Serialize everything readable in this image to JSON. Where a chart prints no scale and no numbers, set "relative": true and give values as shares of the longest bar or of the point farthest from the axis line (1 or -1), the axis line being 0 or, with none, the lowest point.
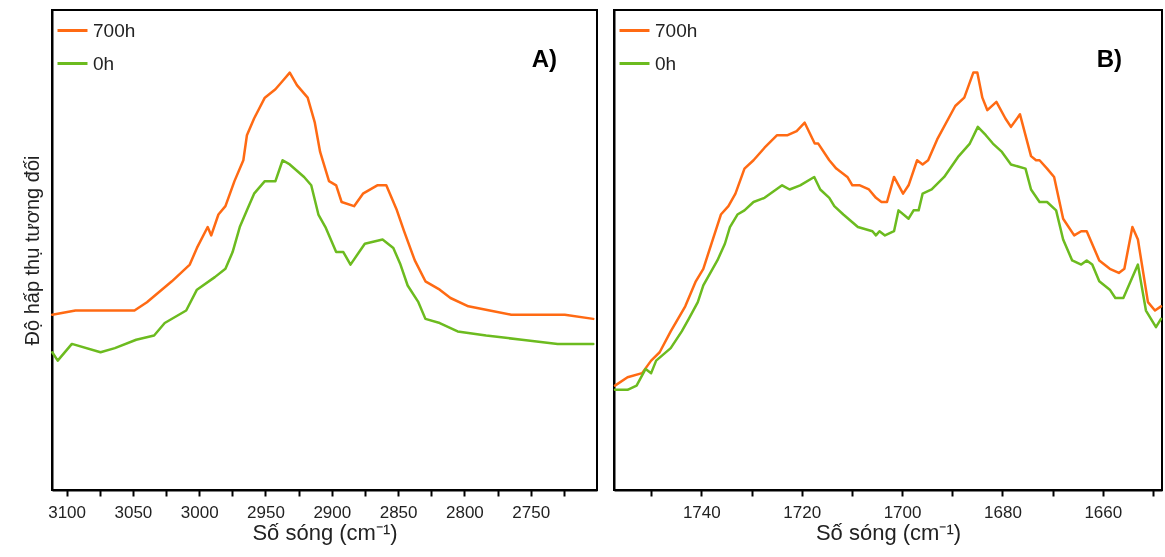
{
  "chart_data": [
    {
      "type": "line",
      "relative": true,
      "ylabel": "Độ hấp thụ tương đối",
      "xlabel": "Số sóng (cm⁻¹)",
      "annotations": [
        "A)"
      ],
      "legend": "top left",
      "xlim": [
        3111,
        2700
      ],
      "xticks": [
        3100,
        {
          "value": 3075,
          "label": null
        },
        3050,
        {
          "value": 3025,
          "label": null
        },
        3000,
        {
          "value": 2975,
          "label": null
        },
        2950,
        {
          "value": 2925,
          "label": null
        },
        2900,
        {
          "value": 2875,
          "label": null
        },
        2850,
        {
          "value": 2825,
          "label": null
        },
        2800,
        {
          "value": 2775,
          "label": null
        },
        2750,
        {
          "value": 2725,
          "label": null
        }
      ],
      "series": [
        {
          "name": "700h",
          "color": "#ff6a13",
          "x": [
            3110.8,
            3093.3,
            3066.3,
            3048.8,
            3039.4,
            3020.6,
            3007.1,
            3001.7,
            2993.6,
            2990.9,
            2985.5,
            2980.2,
            2973.4,
            2966.7,
            2964,
            2958.6,
            2950.5,
            2942.5,
            2937.1,
            2931.7,
            2926.3,
            2918.2,
            2912.8,
            2908.8,
            2902.1,
            2896.7,
            2892.6,
            2883.2,
            2876.5,
            2865.7,
            2858.9,
            2850.9,
            2845.5,
            2837.4,
            2829.4,
            2818.6,
            2810.5,
            2797,
            2780.9,
            2764.7,
            2743.2,
            2724.3,
            2702.8
          ],
          "values": [
            0.42,
            0.43,
            0.43,
            0.43,
            0.45,
            0.5,
            0.54,
            0.58,
            0.63,
            0.61,
            0.66,
            0.68,
            0.74,
            0.79,
            0.85,
            0.89,
            0.94,
            0.96,
            0.98,
            1.0,
            0.97,
            0.94,
            0.88,
            0.81,
            0.74,
            0.73,
            0.69,
            0.68,
            0.71,
            0.73,
            0.73,
            0.67,
            0.62,
            0.55,
            0.5,
            0.48,
            0.46,
            0.44,
            0.43,
            0.42,
            0.42,
            0.42,
            0.41
          ]
        },
        {
          "name": "0h",
          "color": "#6cbb1f",
          "x": [
            3110.8,
            3106.7,
            3096,
            3074.4,
            3063.6,
            3047.5,
            3034,
            3026,
            3009.8,
            3001.7,
            2988.2,
            2980.2,
            2974.8,
            2969.4,
            2964,
            2958.6,
            2950.5,
            2942.5,
            2937.1,
            2931.7,
            2920.9,
            2915.5,
            2910.1,
            2904.8,
            2896.7,
            2891.3,
            2885.9,
            2875.1,
            2861.7,
            2853.6,
            2848.2,
            2842.8,
            2834.7,
            2829.4,
            2818.6,
            2805.1,
            2783.6,
            2756.7,
            2729.7,
            2702.8
          ],
          "values": [
            0.33,
            0.31,
            0.35,
            0.33,
            0.34,
            0.36,
            0.37,
            0.4,
            0.43,
            0.48,
            0.51,
            0.53,
            0.57,
            0.63,
            0.67,
            0.71,
            0.74,
            0.74,
            0.79,
            0.78,
            0.75,
            0.73,
            0.66,
            0.63,
            0.57,
            0.57,
            0.54,
            0.59,
            0.6,
            0.58,
            0.54,
            0.49,
            0.45,
            0.41,
            0.4,
            0.38,
            0.37,
            0.36,
            0.35,
            0.35
          ]
        }
      ]
    },
    {
      "type": "line",
      "relative": true,
      "xlabel": "Số sóng (cm⁻¹)",
      "annotations": [
        "B)"
      ],
      "legend": "top left",
      "xlim": [
        1757.4,
        1648.2
      ],
      "xticks": [
        {
          "value": 1750,
          "label": null
        },
        1740,
        {
          "value": 1730,
          "label": null
        },
        1720,
        {
          "value": 1710,
          "label": null
        },
        1700,
        {
          "value": 1690,
          "label": null
        },
        1680,
        {
          "value": 1670,
          "label": null
        },
        1660,
        {
          "value": 1650,
          "label": null
        }
      ],
      "series": [
        {
          "name": "700h",
          "color": "#ff6a13",
          "x": [
            1757.2,
            1754.7,
            1751.8,
            1750.0,
            1748.3,
            1746.1,
            1743.2,
            1741.1,
            1739.6,
            1736.1,
            1734.6,
            1733.2,
            1731.4,
            1729.6,
            1727.4,
            1724.9,
            1722.8,
            1721.0,
            1719.4,
            1717.4,
            1716.7,
            1714.5,
            1713.1,
            1710.9,
            1709.9,
            1708.4,
            1706.6,
            1705.2,
            1704.1,
            1703.0,
            1701.6,
            1699.8,
            1698.7,
            1697.0,
            1695.9,
            1694.8,
            1693.0,
            1689.4,
            1687.6,
            1685.8,
            1685.0,
            1684.0,
            1683.0,
            1681.2,
            1679.4,
            1678.3,
            1676.5,
            1674.3,
            1673.3,
            1672.6,
            1671.1,
            1669.7,
            1667.9,
            1665.7,
            1664.3,
            1663.2,
            1660.7,
            1658.6,
            1656.8,
            1655.7,
            1654.1,
            1653.0,
            1651.0,
            1649.6,
            1648.4
          ],
          "values": [
            0.25,
            0.27,
            0.28,
            0.31,
            0.33,
            0.38,
            0.44,
            0.5,
            0.53,
            0.66,
            0.68,
            0.71,
            0.77,
            0.79,
            0.82,
            0.85,
            0.85,
            0.86,
            0.88,
            0.83,
            0.83,
            0.79,
            0.77,
            0.75,
            0.73,
            0.73,
            0.72,
            0.7,
            0.69,
            0.69,
            0.75,
            0.71,
            0.73,
            0.79,
            0.78,
            0.79,
            0.84,
            0.92,
            0.94,
            1.0,
            1.0,
            0.94,
            0.91,
            0.93,
            0.89,
            0.87,
            0.9,
            0.8,
            0.79,
            0.79,
            0.77,
            0.75,
            0.65,
            0.61,
            0.62,
            0.62,
            0.55,
            0.53,
            0.52,
            0.53,
            0.63,
            0.6,
            0.45,
            0.43,
            0.44
          ]
        },
        {
          "name": "0h",
          "color": "#6cbb1f",
          "x": [
            1757.2,
            1754.7,
            1752.9,
            1751.1,
            1750.0,
            1749.0,
            1746.1,
            1743.9,
            1742.5,
            1740.7,
            1739.6,
            1736.8,
            1735.3,
            1734.3,
            1732.8,
            1731.4,
            1729.6,
            1727.4,
            1723.9,
            1722.4,
            1720.3,
            1717.5,
            1716.3,
            1714.5,
            1713.5,
            1711.7,
            1708.8,
            1705.9,
            1705.2,
            1704.5,
            1703.4,
            1701.6,
            1700.7,
            1698.7,
            1697.7,
            1696.7,
            1695.9,
            1694.1,
            1691.6,
            1688.7,
            1686.5,
            1684.9,
            1683.3,
            1681.9,
            1680.1,
            1678.3,
            1675.4,
            1674.3,
            1672.6,
            1671.1,
            1669.3,
            1667.9,
            1666.1,
            1664.3,
            1663.2,
            1662.1,
            1660.7,
            1658.6,
            1657.5,
            1655.9,
            1653.0,
            1651.4,
            1649.4,
            1648.4
          ],
          "values": [
            0.24,
            0.24,
            0.25,
            0.29,
            0.28,
            0.31,
            0.34,
            0.38,
            0.41,
            0.45,
            0.49,
            0.55,
            0.59,
            0.63,
            0.66,
            0.67,
            0.69,
            0.7,
            0.73,
            0.72,
            0.73,
            0.75,
            0.72,
            0.7,
            0.68,
            0.66,
            0.63,
            0.62,
            0.61,
            0.62,
            0.61,
            0.62,
            0.67,
            0.65,
            0.67,
            0.67,
            0.71,
            0.72,
            0.75,
            0.8,
            0.83,
            0.87,
            0.85,
            0.83,
            0.81,
            0.78,
            0.77,
            0.72,
            0.69,
            0.69,
            0.67,
            0.6,
            0.55,
            0.54,
            0.55,
            0.54,
            0.5,
            0.48,
            0.46,
            0.46,
            0.54,
            0.43,
            0.39,
            0.41
          ]
        }
      ]
    }
  ]
}
